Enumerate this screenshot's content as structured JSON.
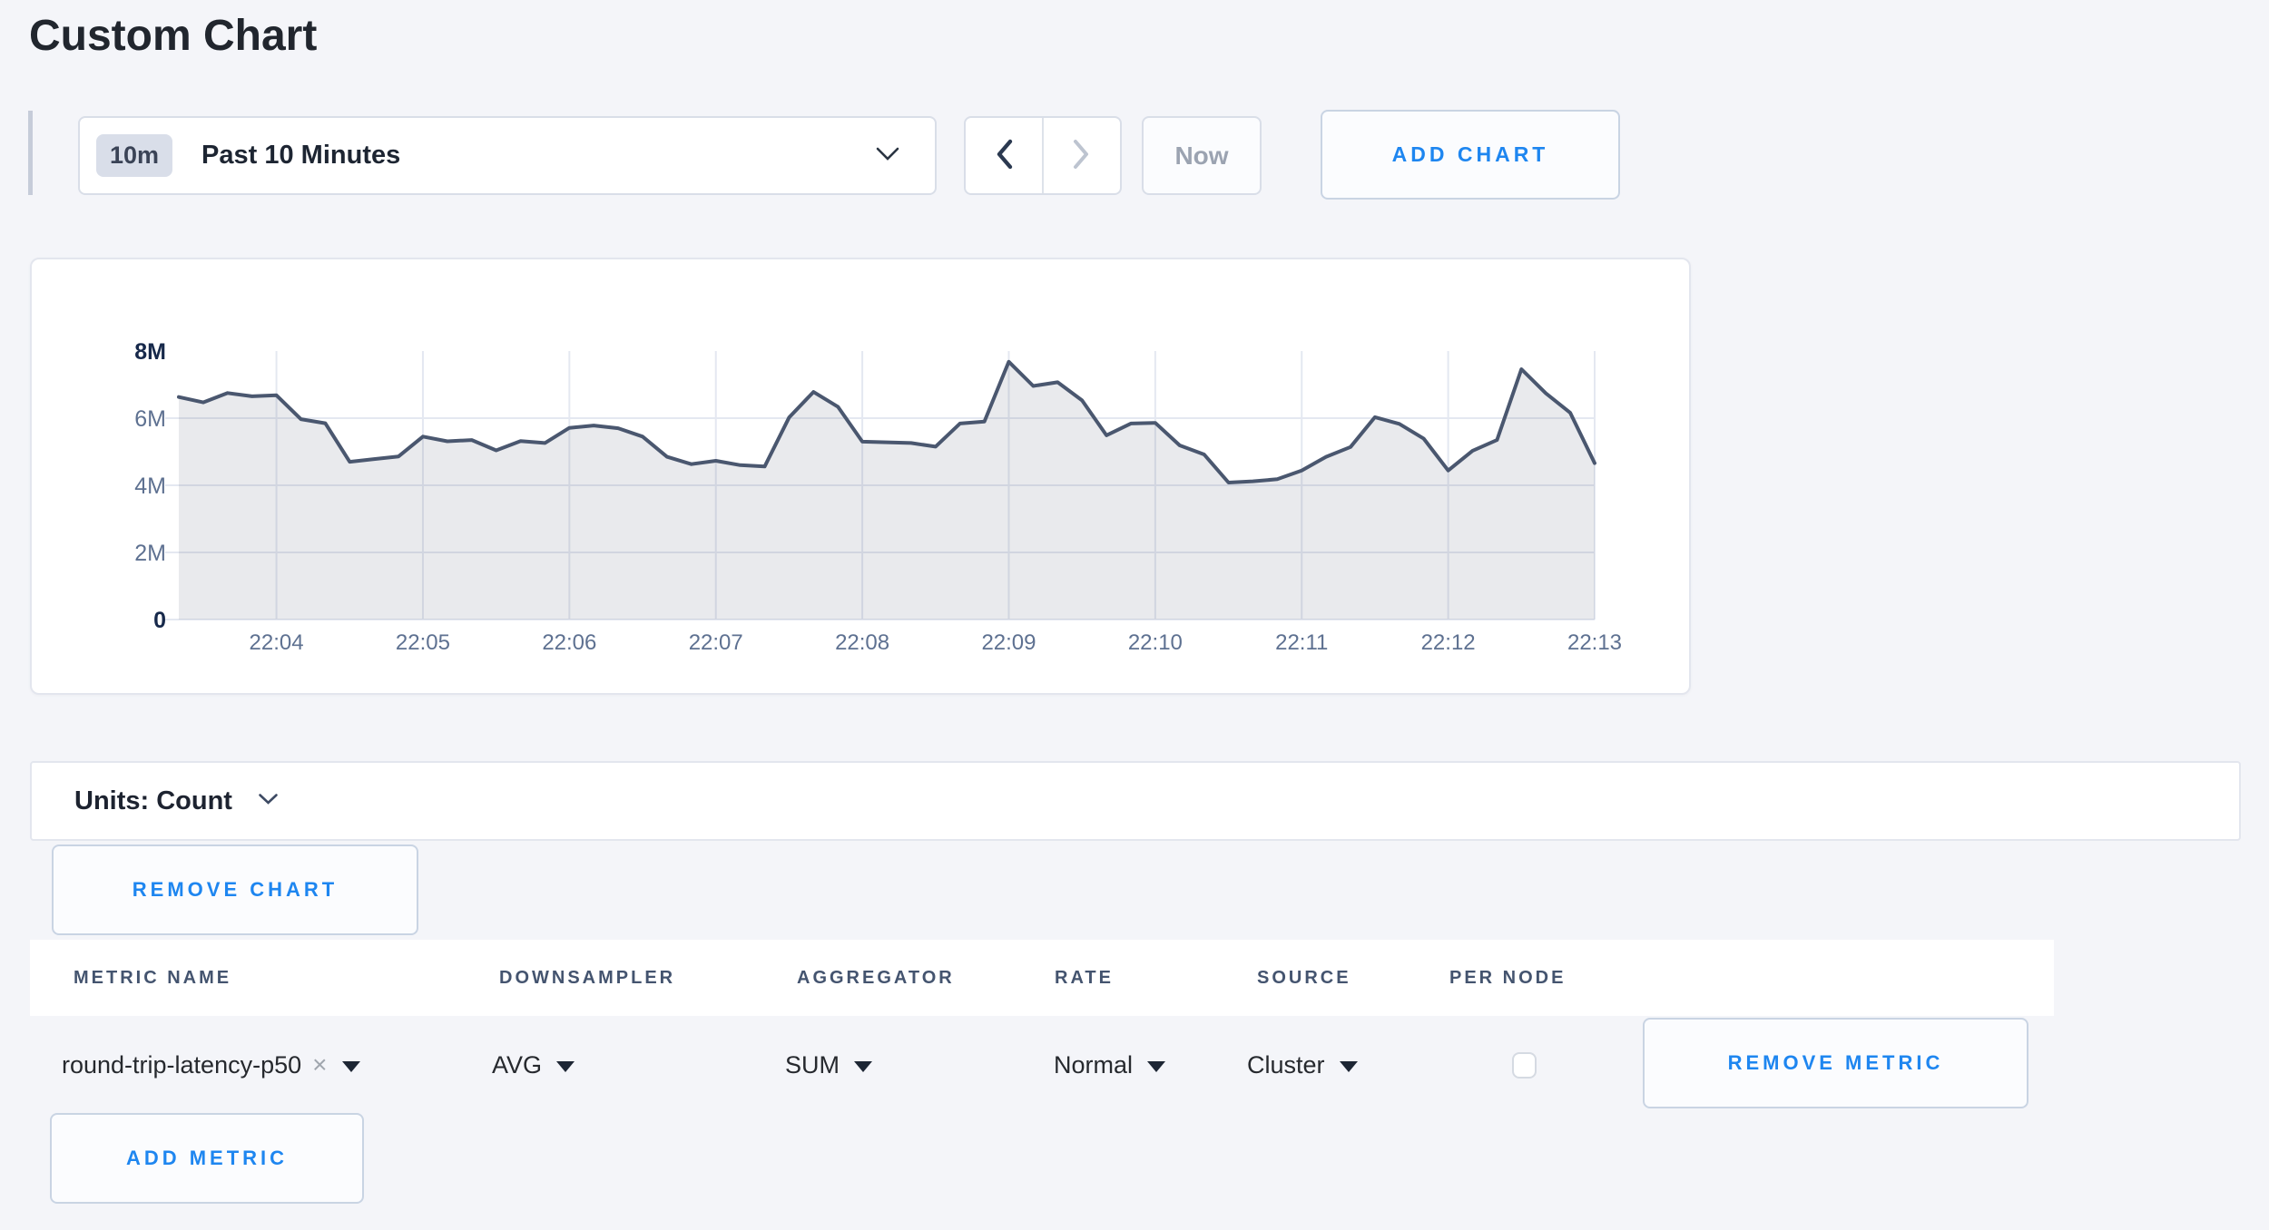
{
  "page": {
    "title": "Custom Chart"
  },
  "toolbar": {
    "range_badge": "10m",
    "range_label": "Past 10 Minutes",
    "now_label": "Now",
    "add_chart_label": "ADD CHART"
  },
  "chart_controls": {
    "units_label": "Units: Count",
    "remove_chart_label": "REMOVE CHART"
  },
  "chart_data": {
    "type": "area",
    "title": "",
    "xlabel": "",
    "ylabel": "",
    "grid": true,
    "legend_position": "none",
    "x_start": "22:03:20",
    "x_interval_seconds": 10,
    "x_tick_labels": [
      "22:04",
      "22:05",
      "22:06",
      "22:07",
      "22:08",
      "22:09",
      "22:10",
      "22:11",
      "22:12",
      "22:13"
    ],
    "x_first_tick_index": 4,
    "x_tick_every": 6,
    "ylim": [
      0,
      8000000
    ],
    "y_ticks": [
      {
        "label": "0",
        "value": 0,
        "strong": true
      },
      {
        "label": "2M",
        "value": 2000000,
        "strong": false
      },
      {
        "label": "4M",
        "value": 4000000,
        "strong": false
      },
      {
        "label": "6M",
        "value": 6000000,
        "strong": false
      },
      {
        "label": "8M",
        "value": 8000000,
        "strong": true
      }
    ],
    "line_color": "#4a576f",
    "fill_color": "rgba(70,83,110,0.12)",
    "grid_color": "#e4e8f1",
    "series": [
      {
        "name": "round-trip-latency-p50",
        "values": [
          6630000,
          6470000,
          6750000,
          6650000,
          6680000,
          5970000,
          5850000,
          4700000,
          4780000,
          4860000,
          5450000,
          5310000,
          5350000,
          5040000,
          5320000,
          5260000,
          5710000,
          5780000,
          5700000,
          5450000,
          4850000,
          4630000,
          4730000,
          4600000,
          4560000,
          6020000,
          6780000,
          6340000,
          5300000,
          5280000,
          5260000,
          5150000,
          5840000,
          5900000,
          7680000,
          6960000,
          7070000,
          6530000,
          5490000,
          5840000,
          5860000,
          5190000,
          4920000,
          4080000,
          4120000,
          4180000,
          4440000,
          4850000,
          5140000,
          6030000,
          5830000,
          5390000,
          4440000,
          5030000,
          5350000,
          7460000,
          6740000,
          6160000,
          4660000
        ]
      }
    ]
  },
  "metrics_table": {
    "columns": [
      "METRIC NAME",
      "DOWNSAMPLER",
      "AGGREGATOR",
      "RATE",
      "SOURCE",
      "PER NODE"
    ],
    "rows": [
      {
        "metric_name": "round-trip-latency-p50",
        "downsampler": "AVG",
        "aggregator": "SUM",
        "rate": "Normal",
        "source": "Cluster",
        "per_node_checked": false,
        "remove_label": "REMOVE METRIC"
      }
    ],
    "add_metric_label": "ADD METRIC"
  }
}
